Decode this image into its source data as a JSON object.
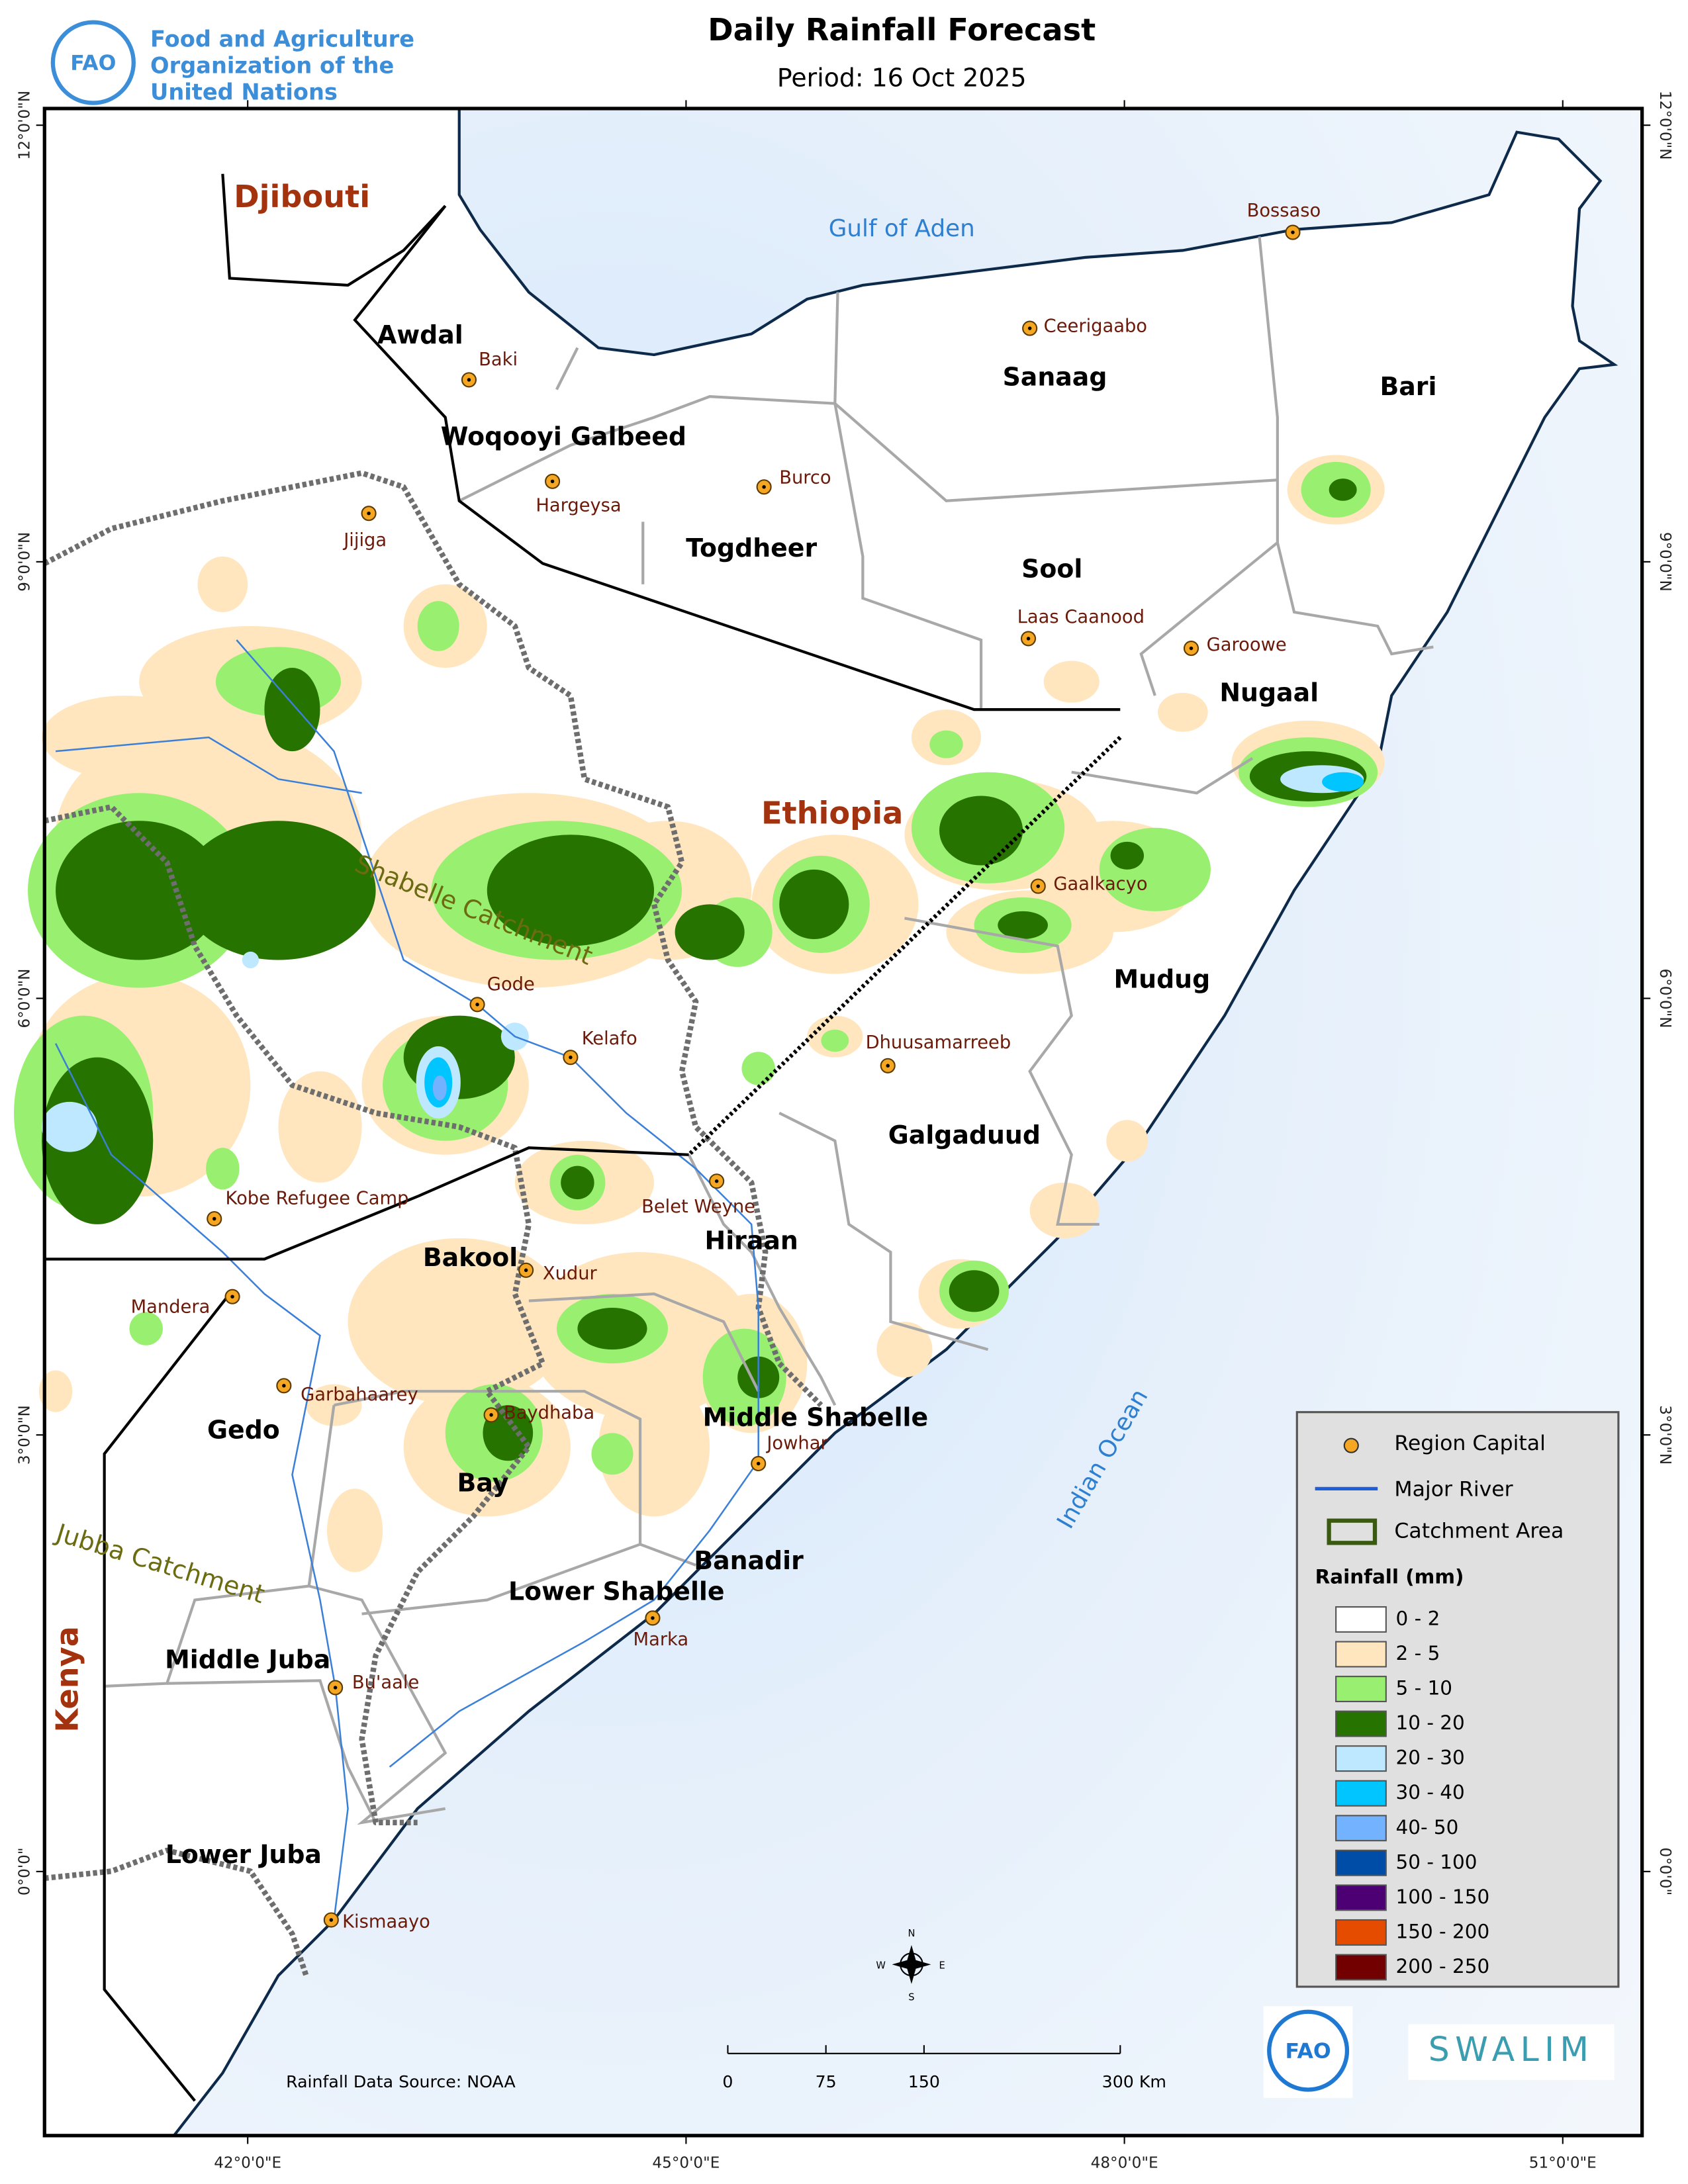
{
  "header": {
    "title": "Daily Rainfall Forecast",
    "period": "Period: 16 Oct 2025",
    "organization": [
      "Food and Agriculture",
      "Organization of the",
      "United Nations"
    ]
  },
  "map": {
    "countries": [
      "Djibouti",
      "Ethiopia",
      "Kenya"
    ],
    "water_bodies": [
      "Gulf of Aden",
      "Indian Ocean"
    ],
    "catchments": [
      "Shabelle Catchment",
      "Jubba Catchment"
    ],
    "regions": [
      "Awdal",
      "Woqooyi Galbeed",
      "Togdheer",
      "Sanaag",
      "Sool",
      "Bari",
      "Nugaal",
      "Mudug",
      "Galgaduud",
      "Hiraan",
      "Bakool",
      "Gedo",
      "Bay",
      "Middle Shabelle",
      "Banadir",
      "Lower Shabelle",
      "Middle Juba",
      "Lower Juba"
    ],
    "places": [
      "Bossaso",
      "Ceerigaabo",
      "Baki",
      "Hargeysa",
      "Burco",
      "Jijiga",
      "Laas Caanood",
      "Garoowe",
      "Gaalkacyo",
      "Gode",
      "Kelafo",
      "Dhuusamarreeb",
      "Belet Weyne",
      "Kobe Refugee Camp",
      "Xudur",
      "Mandera",
      "Garbahaarey",
      "Baydhaba",
      "Jowhar",
      "Marka",
      "Bu'aale",
      "Kismaayo"
    ],
    "graticule": {
      "latitudes": [
        {
          "value": 12,
          "label": "12°0'0\"N"
        },
        {
          "value": 9,
          "label": "9°0'0\"N"
        },
        {
          "value": 6,
          "label": "6°0'0\"N"
        },
        {
          "value": 3,
          "label": "3°0'0\"N"
        },
        {
          "value": 0,
          "label": "0°0'0\""
        }
      ],
      "longitudes": [
        {
          "value": 42,
          "label": "42°0'0\"E"
        },
        {
          "value": 45,
          "label": "45°0'0\"E"
        },
        {
          "value": 48,
          "label": "48°0'0\"E"
        },
        {
          "value": 51,
          "label": "51°0'0\"E"
        }
      ]
    }
  },
  "legend": {
    "items": [
      "Region Capital",
      "Major River",
      "Catchment Area"
    ],
    "rainfall_title": "Rainfall (mm)",
    "classes": [
      {
        "label": "0 - 2",
        "color": "#ffffff"
      },
      {
        "label": "2 - 5",
        "color": "#ffe6bf"
      },
      {
        "label": "5 - 10",
        "color": "#99f070"
      },
      {
        "label": "10 - 20",
        "color": "#267300"
      },
      {
        "label": "20 - 30",
        "color": "#bee8ff"
      },
      {
        "label": "30 - 40",
        "color": "#00c5ff"
      },
      {
        "label": "40- 50",
        "color": "#73b2ff"
      },
      {
        "label": "50 - 100",
        "color": "#004da8"
      },
      {
        "label": "100 - 150",
        "color": "#4c0073"
      },
      {
        "label": "150 - 200",
        "color": "#e64c00"
      },
      {
        "label": "200 - 250",
        "color": "#730000"
      }
    ]
  },
  "scale_bar": {
    "ticks": [
      0,
      75,
      150,
      {
        "value": 300,
        "label": "300 Km"
      }
    ]
  },
  "source": "Rainfall Data Source: NOAA",
  "compass": [
    "N",
    "S",
    "E",
    "W"
  ],
  "logos": {
    "fao": "FAO",
    "swalim": "SWALIM"
  }
}
